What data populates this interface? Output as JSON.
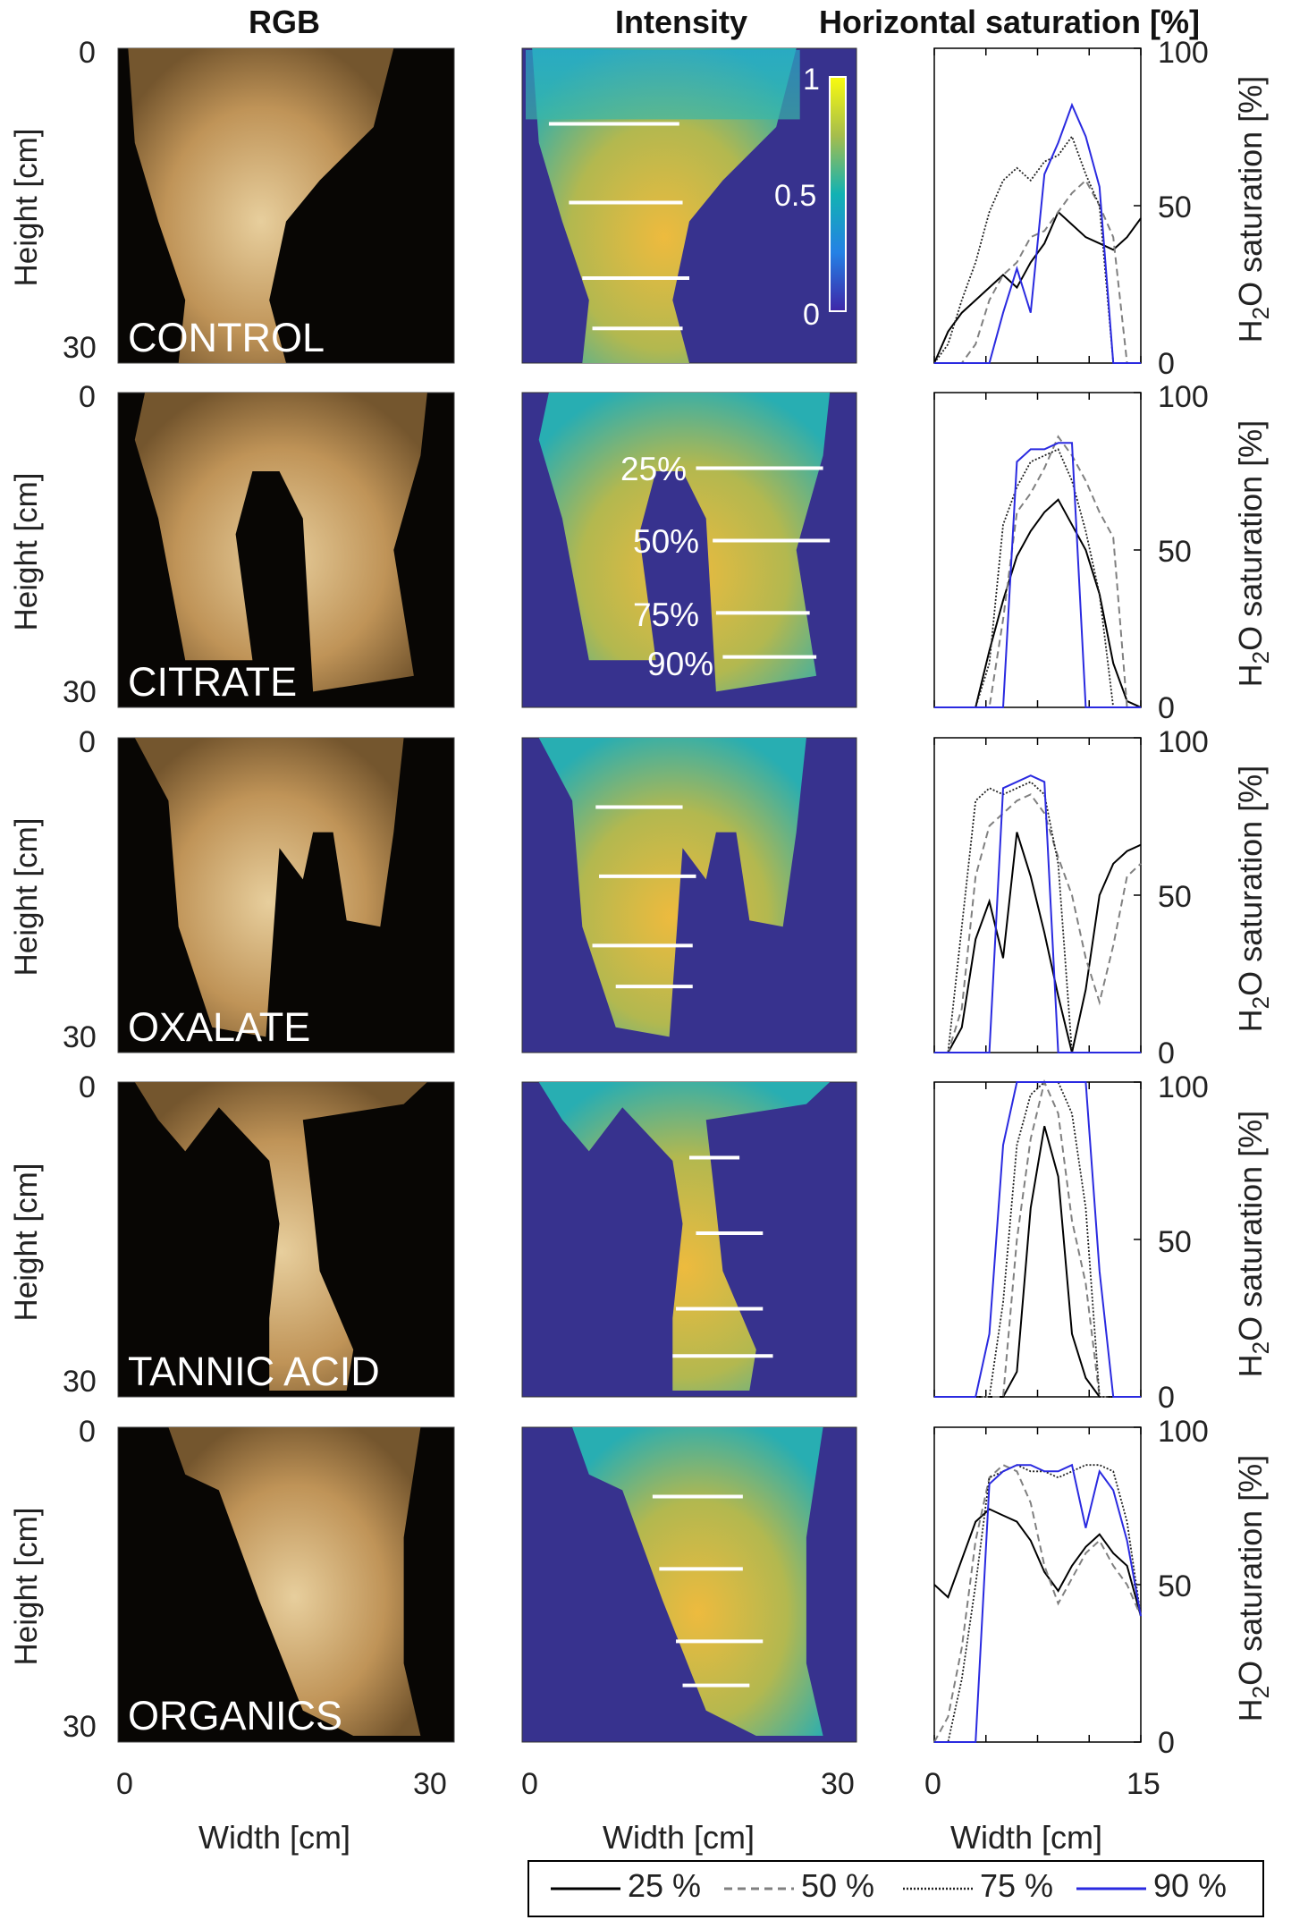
{
  "headers": {
    "rgb": "RGB",
    "intensity": "Intensity",
    "saturation": "Horizontal saturation [%]"
  },
  "axis_labels": {
    "height": "Height [cm]",
    "width": "Width [cm]",
    "h2o_prefix": "H",
    "h2o_sub": "2",
    "h2o_suffix": "O  saturation [%]"
  },
  "height_ticks": [
    "0",
    "30"
  ],
  "rgb_width_ticks": [
    "0",
    "30"
  ],
  "int_width_ticks": [
    "0",
    "30"
  ],
  "sat_width_ticks": [
    "0",
    "15"
  ],
  "sat_y_ticks": [
    "0",
    "50",
    "100"
  ],
  "colorbar_ticks": [
    "0",
    "0.5",
    "1"
  ],
  "rows": [
    {
      "label": "CONTROL"
    },
    {
      "label": "CITRATE",
      "line_labels": [
        "25%",
        "50%",
        "75%",
        "90%"
      ]
    },
    {
      "label": "OXALATE"
    },
    {
      "label": "TANNIC ACID"
    },
    {
      "label": "ORGANICS"
    }
  ],
  "legend": [
    "25 %",
    "50 %",
    "75 %",
    "90 %"
  ],
  "colors": {
    "l25": "#000000",
    "l50": "#808080",
    "l75": "#222222",
    "l90": "#2a2ae0",
    "intensity_bg": "#37328e",
    "intensity_mid": "#27b7b0",
    "intensity_high": "#f6bf3a",
    "rgb_bg": "#080604",
    "rgb_plume": "#d9b47c"
  },
  "chart_data": [
    {
      "panel": "CONTROL",
      "type": "line",
      "xlabel": "Width [cm]",
      "ylabel": "H2O saturation [%]",
      "xlim": [
        0,
        15
      ],
      "ylim": [
        0,
        100
      ],
      "x": [
        0,
        1,
        2,
        3,
        4,
        5,
        6,
        7,
        8,
        9,
        10,
        11,
        12,
        13,
        14,
        15
      ],
      "series": [
        {
          "name": "25 %",
          "values": [
            0,
            10,
            16,
            20,
            24,
            28,
            24,
            32,
            38,
            48,
            44,
            40,
            38,
            36,
            40,
            46
          ]
        },
        {
          "name": "50 %",
          "values": [
            0,
            0,
            0,
            6,
            20,
            28,
            32,
            40,
            42,
            48,
            54,
            58,
            50,
            40,
            0,
            0
          ]
        },
        {
          "name": "75 %",
          "values": [
            0,
            6,
            20,
            32,
            48,
            58,
            62,
            58,
            64,
            66,
            72,
            60,
            50,
            0,
            0,
            0
          ]
        },
        {
          "name": "90 %",
          "values": [
            0,
            0,
            0,
            0,
            0,
            16,
            30,
            16,
            60,
            70,
            82,
            72,
            56,
            0,
            0,
            0
          ]
        }
      ]
    },
    {
      "panel": "CITRATE",
      "type": "line",
      "xlabel": "Width [cm]",
      "ylabel": "H2O saturation [%]",
      "xlim": [
        0,
        15
      ],
      "ylim": [
        0,
        100
      ],
      "x": [
        0,
        1,
        2,
        3,
        4,
        5,
        6,
        7,
        8,
        9,
        10,
        11,
        12,
        13,
        14,
        15
      ],
      "series": [
        {
          "name": "25 %",
          "values": [
            0,
            0,
            0,
            0,
            18,
            34,
            48,
            56,
            62,
            66,
            58,
            50,
            36,
            14,
            2,
            0
          ]
        },
        {
          "name": "50 %",
          "values": [
            0,
            0,
            0,
            0,
            0,
            28,
            62,
            68,
            76,
            86,
            80,
            72,
            62,
            54,
            0,
            0
          ]
        },
        {
          "name": "75 %",
          "values": [
            0,
            0,
            0,
            0,
            14,
            58,
            70,
            78,
            80,
            82,
            72,
            56,
            36,
            0,
            0,
            0
          ]
        },
        {
          "name": "90 %",
          "values": [
            0,
            0,
            0,
            0,
            0,
            0,
            78,
            82,
            82,
            84,
            84,
            0,
            0,
            0,
            0,
            0
          ]
        }
      ]
    },
    {
      "panel": "OXALATE",
      "type": "line",
      "xlabel": "Width [cm]",
      "ylabel": "H2O saturation [%]",
      "xlim": [
        0,
        15
      ],
      "ylim": [
        0,
        100
      ],
      "x": [
        0,
        1,
        2,
        3,
        4,
        5,
        6,
        7,
        8,
        9,
        10,
        11,
        12,
        13,
        14,
        15
      ],
      "series": [
        {
          "name": "25 %",
          "values": [
            0,
            0,
            8,
            36,
            48,
            30,
            70,
            56,
            38,
            18,
            0,
            20,
            50,
            60,
            64,
            66
          ]
        },
        {
          "name": "50 %",
          "values": [
            0,
            0,
            14,
            56,
            72,
            76,
            80,
            82,
            76,
            62,
            50,
            30,
            16,
            34,
            56,
            60
          ]
        },
        {
          "name": "75 %",
          "values": [
            0,
            0,
            40,
            80,
            84,
            82,
            84,
            86,
            82,
            60,
            0,
            0,
            0,
            0,
            0,
            0
          ]
        },
        {
          "name": "90 %",
          "values": [
            0,
            0,
            0,
            0,
            0,
            84,
            86,
            88,
            86,
            0,
            0,
            0,
            0,
            0,
            0,
            0
          ]
        }
      ]
    },
    {
      "panel": "TANNIC ACID",
      "type": "line",
      "xlabel": "Width [cm]",
      "ylabel": "H2O saturation [%]",
      "xlim": [
        0,
        15
      ],
      "ylim": [
        0,
        100
      ],
      "x": [
        0,
        1,
        2,
        3,
        4,
        5,
        6,
        7,
        8,
        9,
        10,
        11,
        12,
        13,
        14,
        15
      ],
      "series": [
        {
          "name": "25 %",
          "values": [
            0,
            0,
            0,
            0,
            0,
            0,
            8,
            60,
            86,
            70,
            20,
            6,
            0,
            0,
            0,
            0
          ]
        },
        {
          "name": "50 %",
          "values": [
            0,
            0,
            0,
            0,
            0,
            0,
            50,
            82,
            100,
            90,
            56,
            36,
            0,
            0,
            0,
            0
          ]
        },
        {
          "name": "75 %",
          "values": [
            0,
            0,
            0,
            0,
            0,
            30,
            80,
            96,
            100,
            100,
            90,
            60,
            0,
            0,
            0,
            0
          ]
        },
        {
          "name": "90 %",
          "values": [
            0,
            0,
            0,
            0,
            20,
            80,
            100,
            100,
            100,
            100,
            100,
            100,
            40,
            0,
            0,
            0
          ]
        }
      ]
    },
    {
      "panel": "ORGANICS",
      "type": "line",
      "xlabel": "Width [cm]",
      "ylabel": "H2O saturation [%]",
      "xlim": [
        0,
        15
      ],
      "ylim": [
        0,
        100
      ],
      "x": [
        0,
        1,
        2,
        3,
        4,
        5,
        6,
        7,
        8,
        9,
        10,
        11,
        12,
        13,
        14,
        15
      ],
      "series": [
        {
          "name": "25 %",
          "values": [
            50,
            46,
            58,
            70,
            74,
            72,
            70,
            64,
            54,
            48,
            56,
            62,
            66,
            60,
            56,
            40
          ]
        },
        {
          "name": "50 %",
          "values": [
            0,
            8,
            30,
            64,
            84,
            88,
            86,
            76,
            56,
            44,
            52,
            60,
            64,
            56,
            50,
            40
          ]
        },
        {
          "name": "75 %",
          "values": [
            0,
            0,
            20,
            50,
            84,
            86,
            88,
            86,
            86,
            84,
            86,
            88,
            88,
            86,
            70,
            40
          ]
        },
        {
          "name": "90 %",
          "values": [
            0,
            0,
            0,
            0,
            82,
            86,
            88,
            88,
            86,
            86,
            88,
            68,
            86,
            80,
            64,
            40
          ]
        }
      ]
    }
  ]
}
